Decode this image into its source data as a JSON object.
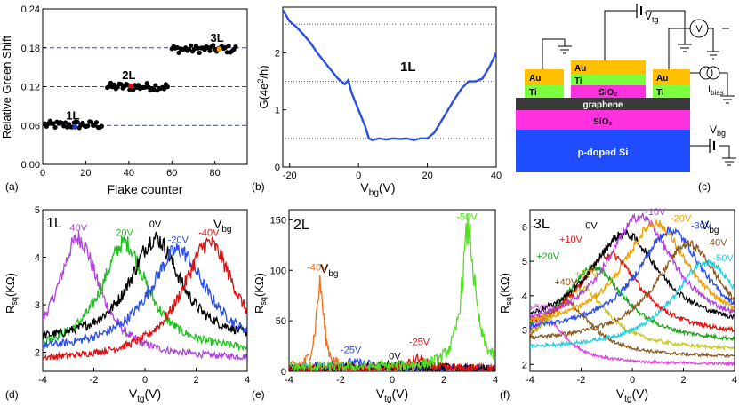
{
  "chart_data": [
    {
      "panel": "(a)",
      "type": "scatter",
      "xlabel": "Flake counter",
      "ylabel": "Relative Green Shift",
      "xlim": [
        0,
        95
      ],
      "ylim": [
        0,
        0.24
      ],
      "xticks": [
        0,
        20,
        40,
        60,
        80
      ],
      "yticks": [
        0.0,
        0.06,
        0.12,
        0.18,
        0.24
      ],
      "ytick_labels": [
        "0.00",
        "0.06",
        "0.12",
        "0.18",
        "0.24"
      ],
      "reference_lines": [
        0.06,
        0.12,
        0.18
      ],
      "clusters": [
        {
          "label": "1L",
          "x_range": [
            1,
            28
          ],
          "y": 0.061,
          "highlight": {
            "x": 15,
            "y": 0.058,
            "color": "#1e3cc8"
          }
        },
        {
          "label": "2L",
          "x_range": [
            30,
            58
          ],
          "y": 0.12,
          "highlight": {
            "x": 41,
            "y": 0.121,
            "color": "#e01010"
          }
        },
        {
          "label": "3L",
          "x_range": [
            60,
            90
          ],
          "y": 0.178,
          "highlight": {
            "x": 82,
            "y": 0.178,
            "color": "#f0a000"
          }
        }
      ]
    },
    {
      "panel": "(b)",
      "type": "line",
      "annotation": "1L",
      "xlabel": "V_bg (V)",
      "ylabel": "G(4e²/h)",
      "xlim": [
        -22,
        40
      ],
      "ylim": [
        0,
        2.8
      ],
      "xticks": [
        -20,
        0,
        20,
        40
      ],
      "yticks": [
        0,
        1,
        2
      ],
      "reference_lines": [
        0.5,
        1.5,
        2.5
      ],
      "series": [
        {
          "name": "1L",
          "color": "#2a4ee8",
          "x": [
            -22,
            -20,
            -18,
            -16,
            -14,
            -12,
            -10,
            -8,
            -6,
            -4,
            -3,
            -2,
            0,
            2,
            3,
            4,
            6,
            8,
            10,
            12,
            14,
            16,
            18,
            20,
            22,
            24,
            26,
            28,
            30,
            32,
            34,
            36,
            38,
            40
          ],
          "y": [
            2.75,
            2.55,
            2.45,
            2.32,
            2.18,
            2.0,
            1.85,
            1.7,
            1.55,
            1.45,
            1.52,
            1.3,
            1.0,
            0.7,
            0.5,
            0.47,
            0.5,
            0.48,
            0.5,
            0.49,
            0.5,
            0.47,
            0.5,
            0.5,
            0.6,
            0.8,
            1.0,
            1.2,
            1.38,
            1.5,
            1.5,
            1.55,
            1.75,
            2.0
          ]
        }
      ]
    },
    {
      "panel": "(d)",
      "type": "line",
      "title": "1L",
      "legend_title": "V_bg",
      "xlabel": "V_tg (V)",
      "ylabel": "R_sq(KΩ)",
      "xlim": [
        -4,
        4
      ],
      "ylim": [
        1.6,
        5.0
      ],
      "xticks": [
        -4,
        -2,
        0,
        2,
        4
      ],
      "yticks": [
        2,
        3,
        4,
        5
      ],
      "series": [
        {
          "name": "40V",
          "color": "#b040e0",
          "peak": -2.6,
          "height": 4.4,
          "width": 1.0,
          "base": 1.85
        },
        {
          "name": "20V",
          "color": "#20c020",
          "peak": -0.8,
          "height": 4.3,
          "width": 1.1,
          "base": 2.0
        },
        {
          "name": "0V",
          "color": "#000000",
          "peak": 0.4,
          "height": 4.4,
          "width": 1.2,
          "base": 2.2
        },
        {
          "name": "-20V",
          "color": "#2a4ee8",
          "peak": 1.3,
          "height": 4.15,
          "width": 1.4,
          "base": 2.0
        },
        {
          "name": "-40V",
          "color": "#e01010",
          "peak": 2.5,
          "height": 4.3,
          "width": 1.3,
          "base": 1.8
        }
      ]
    },
    {
      "panel": "(e)",
      "type": "line",
      "title": "2L",
      "legend_title": "V_bg",
      "xlabel": "V_tg (V)",
      "ylabel": "R_sq(KΩ)",
      "xlim": [
        -4,
        4
      ],
      "ylim": [
        0,
        160
      ],
      "xticks": [
        -4,
        -2,
        0,
        2,
        4
      ],
      "yticks": [
        0,
        50,
        100,
        150
      ],
      "series": [
        {
          "name": "-40V",
          "color": "#f07020",
          "peak": -2.8,
          "height": 85,
          "width": 0.18,
          "base": 3
        },
        {
          "name": "-25V",
          "color": "#2a4ee8",
          "peak": -1.6,
          "height": 8,
          "width": 1.2,
          "base": 2
        },
        {
          "name": "0V",
          "color": "#000000",
          "peak": 0.1,
          "height": 5,
          "width": 1.5,
          "base": 2
        },
        {
          "name": "-25V",
          "color": "#e01010",
          "peak": 1.0,
          "height": 12,
          "width": 0.4,
          "base": 2
        },
        {
          "name": "-50V",
          "color": "#50e020",
          "peak": 2.95,
          "height": 140,
          "width": 0.3,
          "base": 4
        }
      ]
    },
    {
      "panel": "(f)",
      "type": "line",
      "title": "3L",
      "legend_title": "V_bg",
      "xlabel": "V_tg (V)",
      "ylabel": "R_sq(KΩ)",
      "xlim": [
        -4,
        4
      ],
      "ylim": [
        1.8,
        6.5
      ],
      "xticks": [
        -4,
        -2,
        0,
        2,
        4
      ],
      "yticks": [
        2,
        3,
        4,
        5,
        6
      ],
      "series": [
        {
          "name": "+50V",
          "color": "#e040e0",
          "peak": -3.4,
          "height": 3.3,
          "width": 1.0,
          "base": 2.0
        },
        {
          "name": "+40V",
          "color": "#8a5a20",
          "peak": -2.6,
          "height": 3.8,
          "width": 1.2,
          "base": 2.2
        },
        {
          "name": "+30V",
          "color": "#c8c820",
          "peak": -2.0,
          "height": 4.2,
          "width": 1.3,
          "base": 2.4
        },
        {
          "name": "+20V",
          "color": "#20a020",
          "peak": -1.5,
          "height": 4.8,
          "width": 1.5,
          "base": 2.6
        },
        {
          "name": "+10V",
          "color": "#e01010",
          "peak": -0.9,
          "height": 5.2,
          "width": 1.5,
          "base": 2.8
        },
        {
          "name": "0V",
          "color": "#000000",
          "peak": -0.3,
          "height": 5.8,
          "width": 1.7,
          "base": 3.0
        },
        {
          "name": "-10V",
          "color": "#b040e0",
          "peak": 0.3,
          "height": 6.3,
          "width": 1.6,
          "base": 3.0
        },
        {
          "name": "-20V",
          "color": "#f0a000",
          "peak": 0.9,
          "height": 6.1,
          "width": 1.6,
          "base": 3.0
        },
        {
          "name": "-30V",
          "color": "#2a4ee8",
          "peak": 1.5,
          "height": 5.9,
          "width": 1.6,
          "base": 2.9
        },
        {
          "name": "-40V",
          "color": "#8a5a20",
          "peak": 2.2,
          "height": 5.5,
          "width": 1.6,
          "base": 2.6
        },
        {
          "name": "-50V",
          "color": "#20d0e0",
          "peak": 2.9,
          "height": 5.0,
          "width": 1.6,
          "base": 2.4
        }
      ]
    }
  ],
  "schematic": {
    "panel": "(c)",
    "layers": {
      "substrate": "p-doped Si",
      "oxide": "SiO₂",
      "graphene": "graphene",
      "top_oxide": "SiO₂"
    },
    "contacts": {
      "metal": "Au",
      "adhesion": "Ti"
    },
    "labels": {
      "vtg": "V",
      "vtg_sub": "tg",
      "vbg": "V",
      "vbg_sub": "bg",
      "ibias": "I",
      "ibias_sub": "bias",
      "voltmeter": "V"
    },
    "colors": {
      "si": "#1f4cff",
      "sio2": "#ff30e0",
      "graphene": "#3a3a3a",
      "ti": "#7cff3c",
      "au": "#ffc000"
    }
  },
  "panel_labels": {
    "a": "(a)",
    "b": "(b)",
    "c": "(c)",
    "d": "(d)",
    "e": "(e)",
    "f": "(f)"
  }
}
